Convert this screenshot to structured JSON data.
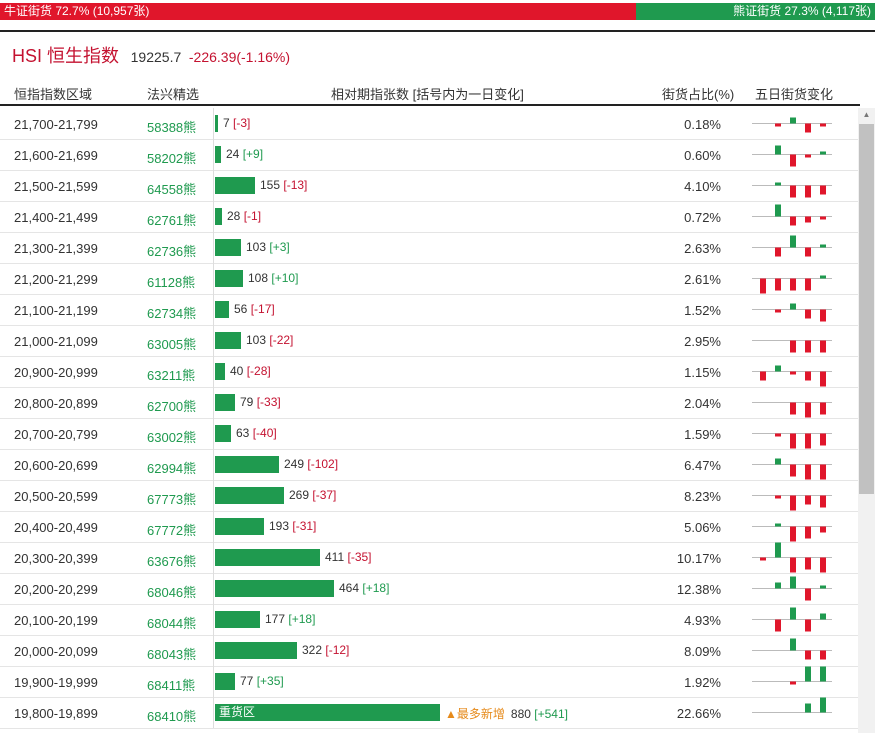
{
  "topbar": {
    "bull_label": "牛证街货 72.7% (10,957张)",
    "bear_label": "熊证街货 27.3% (4,117张)"
  },
  "header": {
    "index_name": "HSI 恒生指数",
    "value": "19225.7",
    "change": "-226.39(-1.16%)"
  },
  "columns": {
    "range": "恒指指数区域",
    "pick": "法兴精选",
    "relative": "相对期指张数 [括号内为一日变化]",
    "share": "街货占比(%)",
    "five_day": "五日街货变化"
  },
  "rows": [
    {
      "range": "21,700-21,799",
      "code": "58388熊",
      "count": 7,
      "count_label": "7",
      "delta": "[-3]",
      "sign": "neg",
      "pct": "0.18%",
      "spark": [
        0,
        -1,
        2,
        -3,
        -1
      ]
    },
    {
      "range": "21,600-21,699",
      "code": "58202熊",
      "count": 24,
      "count_label": "24",
      "delta": "[+9]",
      "sign": "pos",
      "pct": "0.60%",
      "spark": [
        0,
        3,
        -4,
        -1,
        1
      ]
    },
    {
      "range": "21,500-21,599",
      "code": "64558熊",
      "count": 155,
      "count_label": "155",
      "delta": "[-13]",
      "sign": "neg",
      "pct": "4.10%",
      "spark": [
        0,
        1,
        -4,
        -4,
        -3
      ]
    },
    {
      "range": "21,400-21,499",
      "code": "62761熊",
      "count": 28,
      "count_label": "28",
      "delta": "[-1]",
      "sign": "neg",
      "pct": "0.72%",
      "spark": [
        0,
        4,
        -3,
        -2,
        -1
      ]
    },
    {
      "range": "21,300-21,399",
      "code": "62736熊",
      "count": 103,
      "count_label": "103",
      "delta": "[+3]",
      "sign": "pos",
      "pct": "2.63%",
      "spark": [
        0,
        -3,
        4,
        -3,
        1
      ]
    },
    {
      "range": "21,200-21,299",
      "code": "61128熊",
      "count": 108,
      "count_label": "108",
      "delta": "[+10]",
      "sign": "pos",
      "pct": "2.61%",
      "spark": [
        -5,
        -4,
        -4,
        -4,
        1
      ]
    },
    {
      "range": "21,100-21,199",
      "code": "62734熊",
      "count": 56,
      "count_label": "56",
      "delta": "[-17]",
      "sign": "neg",
      "pct": "1.52%",
      "spark": [
        0,
        -1,
        2,
        -3,
        -4
      ]
    },
    {
      "range": "21,000-21,099",
      "code": "63005熊",
      "count": 103,
      "count_label": "103",
      "delta": "[-22]",
      "sign": "neg",
      "pct": "2.95%",
      "spark": [
        0,
        0,
        -4,
        -4,
        -4
      ]
    },
    {
      "range": "20,900-20,999",
      "code": "63211熊",
      "count": 40,
      "count_label": "40",
      "delta": "[-28]",
      "sign": "neg",
      "pct": "1.15%",
      "spark": [
        -3,
        2,
        -1,
        -3,
        -5
      ]
    },
    {
      "range": "20,800-20,899",
      "code": "62700熊",
      "count": 79,
      "count_label": "79",
      "delta": "[-33]",
      "sign": "neg",
      "pct": "2.04%",
      "spark": [
        0,
        0,
        -4,
        -5,
        -4
      ]
    },
    {
      "range": "20,700-20,799",
      "code": "63002熊",
      "count": 63,
      "count_label": "63",
      "delta": "[-40]",
      "sign": "neg",
      "pct": "1.59%",
      "spark": [
        0,
        -1,
        -5,
        -5,
        -4
      ]
    },
    {
      "range": "20,600-20,699",
      "code": "62994熊",
      "count": 249,
      "count_label": "249",
      "delta": "[-102]",
      "sign": "neg",
      "pct": "6.47%",
      "spark": [
        0,
        2,
        -4,
        -5,
        -5
      ]
    },
    {
      "range": "20,500-20,599",
      "code": "67773熊",
      "count": 269,
      "count_label": "269",
      "delta": "[-37]",
      "sign": "neg",
      "pct": "8.23%",
      "spark": [
        0,
        -1,
        -5,
        -3,
        -4
      ]
    },
    {
      "range": "20,400-20,499",
      "code": "67772熊",
      "count": 193,
      "count_label": "193",
      "delta": "[-31]",
      "sign": "neg",
      "pct": "5.06%",
      "spark": [
        0,
        1,
        -5,
        -4,
        -2
      ]
    },
    {
      "range": "20,300-20,399",
      "code": "63676熊",
      "count": 411,
      "count_label": "411",
      "delta": "[-35]",
      "sign": "neg",
      "pct": "10.17%",
      "spark": [
        -1,
        5,
        -5,
        -4,
        -5
      ]
    },
    {
      "range": "20,200-20,299",
      "code": "68046熊",
      "count": 464,
      "count_label": "464",
      "delta": "[+18]",
      "sign": "pos",
      "pct": "12.38%",
      "spark": [
        0,
        2,
        4,
        -4,
        1
      ]
    },
    {
      "range": "20,100-20,199",
      "code": "68044熊",
      "count": 177,
      "count_label": "177",
      "delta": "[+18]",
      "sign": "pos",
      "pct": "4.93%",
      "spark": [
        0,
        -4,
        4,
        -4,
        2
      ]
    },
    {
      "range": "20,000-20,099",
      "code": "68043熊",
      "count": 322,
      "count_label": "322",
      "delta": "[-12]",
      "sign": "neg",
      "pct": "8.09%",
      "spark": [
        0,
        0,
        4,
        -3,
        -3
      ]
    },
    {
      "range": "19,900-19,999",
      "code": "68411熊",
      "count": 77,
      "count_label": "77",
      "delta": "[+35]",
      "sign": "pos",
      "pct": "1.92%",
      "spark": [
        0,
        0,
        -1,
        5,
        5
      ]
    },
    {
      "range": "19,800-19,899",
      "code": "68410熊",
      "count": 880,
      "count_label": "880",
      "delta": "[+541]",
      "sign": "pos",
      "pct": "22.66%",
      "heavy_label": "重货区",
      "tag": "▲最多新增",
      "spark": [
        0,
        0,
        0,
        3,
        5
      ]
    }
  ],
  "colors": {
    "bear_green": "#1f9a4f",
    "bull_red": "#e0162b",
    "neg_red": "#c41230"
  },
  "scrollbar": {
    "arrow_icon": "triangle-up-icon"
  }
}
